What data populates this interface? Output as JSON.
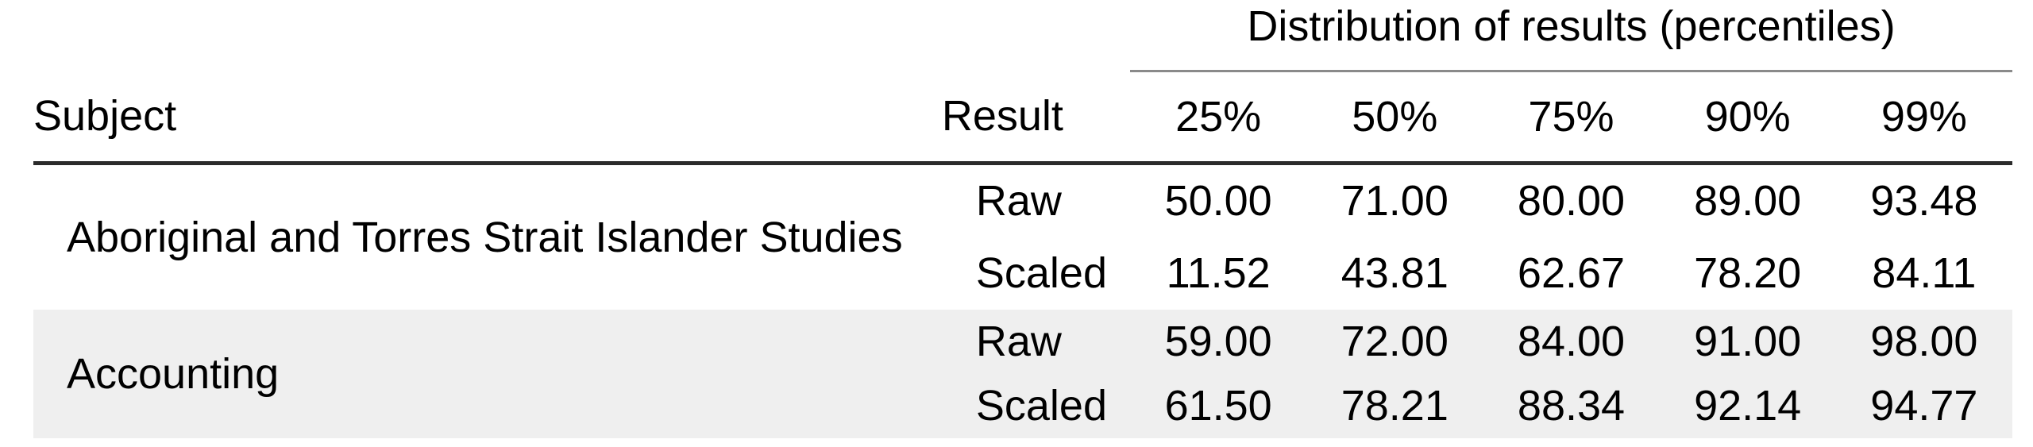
{
  "table": {
    "spanner_header": "Distribution of results (percentiles)",
    "columns": {
      "subject": "Subject",
      "result": "Result",
      "percentiles": [
        "25%",
        "50%",
        "75%",
        "90%",
        "99%"
      ]
    },
    "result_labels": [
      "Raw",
      "Scaled"
    ],
    "rows": [
      {
        "subject": "Aboriginal and Torres Strait Islander Studies",
        "raw": [
          "50.00",
          "71.00",
          "80.00",
          "89.00",
          "93.48"
        ],
        "scaled": [
          "11.52",
          "43.81",
          "62.67",
          "78.20",
          "84.11"
        ]
      },
      {
        "subject": "Accounting",
        "raw": [
          "59.00",
          "72.00",
          "84.00",
          "91.00",
          "98.00"
        ],
        "scaled": [
          "61.50",
          "78.21",
          "88.34",
          "92.14",
          "94.77"
        ]
      }
    ],
    "colors": {
      "stripe_background": "#efefef",
      "heavy_rule": "#2b2b2b",
      "light_rule": "#8a8a8a",
      "text": "#000000"
    }
  }
}
